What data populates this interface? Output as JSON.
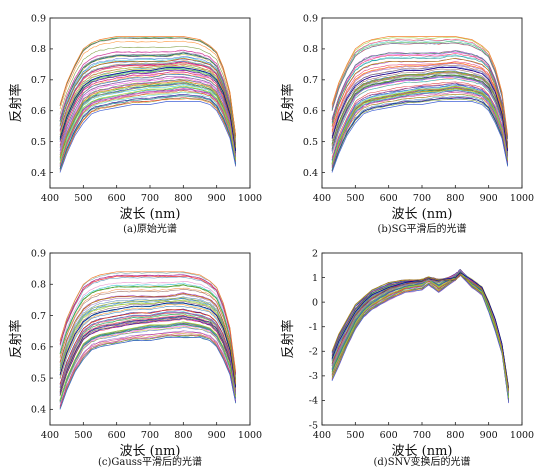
{
  "figure": {
    "panels": [
      {
        "id": "a",
        "caption": "(a)原始光谱"
      },
      {
        "id": "b",
        "caption": "(b)SG平滑后的光谱"
      },
      {
        "id": "c",
        "caption": "(c)Gauss平滑后的光谱"
      },
      {
        "id": "d",
        "caption": "(d)SNV变换后的光谱"
      }
    ]
  },
  "chart_data": [
    {
      "type": "line",
      "caption": "(a)原始光谱",
      "xlabel": "波长 (nm)",
      "ylabel": "反射率",
      "xlim": [
        400,
        1000
      ],
      "ylim": [
        0.35,
        0.9
      ],
      "xticks": [
        400,
        500,
        600,
        700,
        800,
        900,
        1000
      ],
      "yticks": [
        0.4,
        0.5,
        0.6,
        0.7,
        0.8,
        0.9
      ],
      "x": [
        430,
        450,
        475,
        500,
        525,
        550,
        600,
        650,
        700,
        750,
        800,
        850,
        880,
        900,
        920,
        940,
        957
      ],
      "series": [
        {
          "values": [
            0.4,
            0.46,
            0.52,
            0.56,
            0.59,
            0.6,
            0.61,
            0.62,
            0.62,
            0.63,
            0.63,
            0.63,
            0.62,
            0.6,
            0.56,
            0.51,
            0.42
          ]
        },
        {
          "values": [
            0.43,
            0.5,
            0.56,
            0.61,
            0.63,
            0.64,
            0.65,
            0.66,
            0.67,
            0.67,
            0.68,
            0.67,
            0.66,
            0.64,
            0.6,
            0.54,
            0.44
          ]
        },
        {
          "values": [
            0.47,
            0.54,
            0.6,
            0.65,
            0.67,
            0.68,
            0.69,
            0.7,
            0.7,
            0.71,
            0.71,
            0.7,
            0.69,
            0.67,
            0.63,
            0.57,
            0.45
          ]
        },
        {
          "values": [
            0.51,
            0.58,
            0.64,
            0.68,
            0.7,
            0.71,
            0.72,
            0.73,
            0.73,
            0.74,
            0.74,
            0.73,
            0.72,
            0.7,
            0.66,
            0.59,
            0.47
          ]
        },
        {
          "values": [
            0.55,
            0.62,
            0.68,
            0.72,
            0.74,
            0.75,
            0.76,
            0.76,
            0.76,
            0.76,
            0.77,
            0.76,
            0.75,
            0.73,
            0.68,
            0.61,
            0.48
          ]
        },
        {
          "values": [
            0.62,
            0.69,
            0.75,
            0.8,
            0.82,
            0.83,
            0.84,
            0.84,
            0.84,
            0.84,
            0.84,
            0.83,
            0.81,
            0.79,
            0.74,
            0.66,
            0.52
          ]
        }
      ]
    },
    {
      "type": "line",
      "caption": "(b)SG平滑后的光谱",
      "xlabel": "波长 (nm)",
      "ylabel": "反射率",
      "xlim": [
        400,
        1000
      ],
      "ylim": [
        0.35,
        0.9
      ],
      "xticks": [
        400,
        500,
        600,
        700,
        800,
        900,
        1000
      ],
      "yticks": [
        0.4,
        0.5,
        0.6,
        0.7,
        0.8,
        0.9
      ],
      "x": [
        430,
        450,
        475,
        500,
        525,
        550,
        600,
        650,
        700,
        750,
        800,
        850,
        880,
        900,
        920,
        940,
        957
      ],
      "series": [
        {
          "values": [
            0.4,
            0.46,
            0.52,
            0.56,
            0.59,
            0.6,
            0.61,
            0.62,
            0.62,
            0.63,
            0.63,
            0.63,
            0.62,
            0.6,
            0.56,
            0.51,
            0.42
          ]
        },
        {
          "values": [
            0.43,
            0.5,
            0.56,
            0.61,
            0.63,
            0.64,
            0.65,
            0.66,
            0.67,
            0.67,
            0.68,
            0.67,
            0.66,
            0.64,
            0.6,
            0.54,
            0.44
          ]
        },
        {
          "values": [
            0.47,
            0.54,
            0.6,
            0.65,
            0.67,
            0.68,
            0.69,
            0.7,
            0.7,
            0.71,
            0.71,
            0.7,
            0.69,
            0.67,
            0.63,
            0.57,
            0.45
          ]
        },
        {
          "values": [
            0.51,
            0.58,
            0.64,
            0.68,
            0.7,
            0.71,
            0.72,
            0.73,
            0.73,
            0.74,
            0.74,
            0.73,
            0.72,
            0.7,
            0.66,
            0.59,
            0.47
          ]
        },
        {
          "values": [
            0.55,
            0.62,
            0.68,
            0.72,
            0.74,
            0.75,
            0.76,
            0.76,
            0.76,
            0.76,
            0.77,
            0.76,
            0.75,
            0.73,
            0.68,
            0.61,
            0.48
          ]
        },
        {
          "values": [
            0.62,
            0.69,
            0.75,
            0.8,
            0.82,
            0.83,
            0.84,
            0.84,
            0.84,
            0.84,
            0.84,
            0.83,
            0.81,
            0.79,
            0.74,
            0.66,
            0.52
          ]
        }
      ]
    },
    {
      "type": "line",
      "caption": "(c)Gauss平滑后的光谱",
      "xlabel": "波长 (nm)",
      "ylabel": "反射率",
      "xlim": [
        400,
        1000
      ],
      "ylim": [
        0.35,
        0.9
      ],
      "xticks": [
        400,
        500,
        600,
        700,
        800,
        900,
        1000
      ],
      "yticks": [
        0.4,
        0.5,
        0.6,
        0.7,
        0.8,
        0.9
      ],
      "x": [
        430,
        450,
        475,
        500,
        525,
        550,
        600,
        650,
        700,
        750,
        800,
        850,
        880,
        900,
        920,
        940,
        957
      ],
      "series": [
        {
          "values": [
            0.4,
            0.46,
            0.52,
            0.56,
            0.59,
            0.6,
            0.61,
            0.62,
            0.62,
            0.63,
            0.63,
            0.63,
            0.62,
            0.6,
            0.56,
            0.51,
            0.42
          ]
        },
        {
          "values": [
            0.43,
            0.5,
            0.56,
            0.61,
            0.63,
            0.64,
            0.65,
            0.66,
            0.67,
            0.67,
            0.68,
            0.67,
            0.66,
            0.64,
            0.6,
            0.54,
            0.44
          ]
        },
        {
          "values": [
            0.47,
            0.54,
            0.6,
            0.65,
            0.67,
            0.68,
            0.69,
            0.7,
            0.7,
            0.71,
            0.71,
            0.7,
            0.69,
            0.67,
            0.63,
            0.57,
            0.45
          ]
        },
        {
          "values": [
            0.51,
            0.58,
            0.64,
            0.68,
            0.7,
            0.71,
            0.72,
            0.73,
            0.73,
            0.74,
            0.74,
            0.73,
            0.72,
            0.7,
            0.66,
            0.59,
            0.47
          ]
        },
        {
          "values": [
            0.55,
            0.62,
            0.68,
            0.72,
            0.74,
            0.75,
            0.76,
            0.76,
            0.76,
            0.76,
            0.77,
            0.76,
            0.75,
            0.73,
            0.68,
            0.61,
            0.48
          ]
        },
        {
          "values": [
            0.62,
            0.69,
            0.75,
            0.8,
            0.82,
            0.83,
            0.84,
            0.84,
            0.84,
            0.84,
            0.84,
            0.83,
            0.81,
            0.79,
            0.74,
            0.66,
            0.52
          ]
        }
      ]
    },
    {
      "type": "line",
      "caption": "(d)SNV变换后的光谱",
      "xlabel": "波长 (nm)",
      "ylabel": "反射率",
      "xlim": [
        400,
        1000
      ],
      "ylim": [
        -5,
        2
      ],
      "xticks": [
        400,
        500,
        600,
        700,
        800,
        900,
        1000
      ],
      "yticks": [
        -5,
        -4,
        -3,
        -2,
        -1,
        0,
        1,
        2
      ],
      "x": [
        430,
        450,
        475,
        500,
        525,
        550,
        600,
        650,
        700,
        720,
        750,
        800,
        815,
        850,
        880,
        900,
        920,
        940,
        960
      ],
      "series": [
        {
          "values": [
            -3.2,
            -2.6,
            -1.8,
            -1.1,
            -0.6,
            -0.3,
            0.1,
            0.4,
            0.5,
            0.7,
            0.4,
            0.9,
            1.1,
            0.6,
            0.3,
            -0.4,
            -1.2,
            -2.1,
            -4.1
          ]
        },
        {
          "values": [
            -2.9,
            -2.3,
            -1.6,
            -0.9,
            -0.4,
            -0.1,
            0.3,
            0.6,
            0.7,
            0.9,
            0.6,
            1.0,
            1.2,
            0.7,
            0.4,
            -0.3,
            -1.0,
            -2.0,
            -3.9
          ]
        },
        {
          "values": [
            -2.6,
            -2.0,
            -1.3,
            -0.6,
            -0.2,
            0.1,
            0.5,
            0.7,
            0.8,
            0.9,
            0.8,
            1.1,
            1.3,
            0.8,
            0.5,
            -0.1,
            -0.8,
            -1.8,
            -3.7
          ]
        },
        {
          "values": [
            -2.3,
            -1.6,
            -1.0,
            -0.4,
            0.0,
            0.3,
            0.6,
            0.8,
            0.9,
            1.0,
            0.9,
            1.0,
            1.2,
            0.9,
            0.6,
            0.0,
            -0.7,
            -1.7,
            -3.5
          ]
        },
        {
          "values": [
            -2.0,
            -1.3,
            -0.7,
            -0.1,
            0.2,
            0.5,
            0.8,
            0.9,
            0.9,
            1.0,
            0.9,
            0.9,
            1.1,
            0.8,
            0.5,
            -0.1,
            -0.9,
            -1.9,
            -3.6
          ]
        }
      ]
    }
  ]
}
